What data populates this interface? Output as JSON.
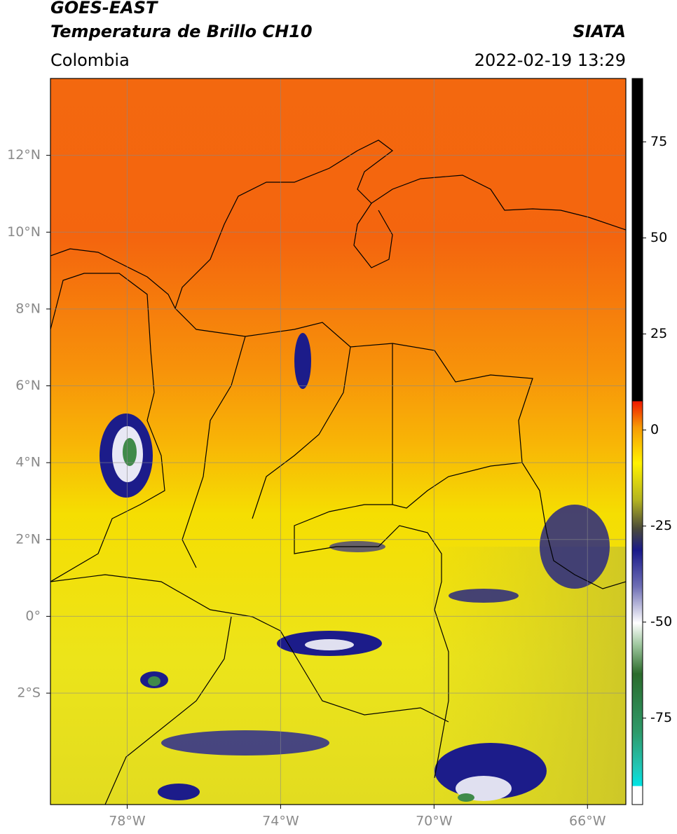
{
  "header": {
    "title_line1": "GOES-EAST",
    "title_line2": "Temperatura de Brillo CH10",
    "region": "Colombia",
    "agency": "SIATA",
    "timestamp": "2022-02-19 13:29"
  },
  "map": {
    "xlim": [
      -80,
      -65
    ],
    "ylim": [
      -4.9,
      14
    ],
    "xticks": [
      {
        "value": -78,
        "label": "78°W"
      },
      {
        "value": -74,
        "label": "74°W"
      },
      {
        "value": -70,
        "label": "70°W"
      },
      {
        "value": -66,
        "label": "66°W"
      }
    ],
    "yticks": [
      {
        "value": 12,
        "label": "12°N"
      },
      {
        "value": 10,
        "label": "10°N"
      },
      {
        "value": 8,
        "label": "8°N"
      },
      {
        "value": 6,
        "label": "6°N"
      },
      {
        "value": 4,
        "label": "4°N"
      },
      {
        "value": 2,
        "label": "2°N"
      },
      {
        "value": 0,
        "label": "0°"
      },
      {
        "value": -2,
        "label": "2°S"
      }
    ],
    "grid": true
  },
  "colorbar": {
    "lim": [
      -97.5,
      91.5
    ],
    "ticks": [
      75,
      50,
      25,
      0,
      -25,
      -50,
      -75
    ]
  }
}
